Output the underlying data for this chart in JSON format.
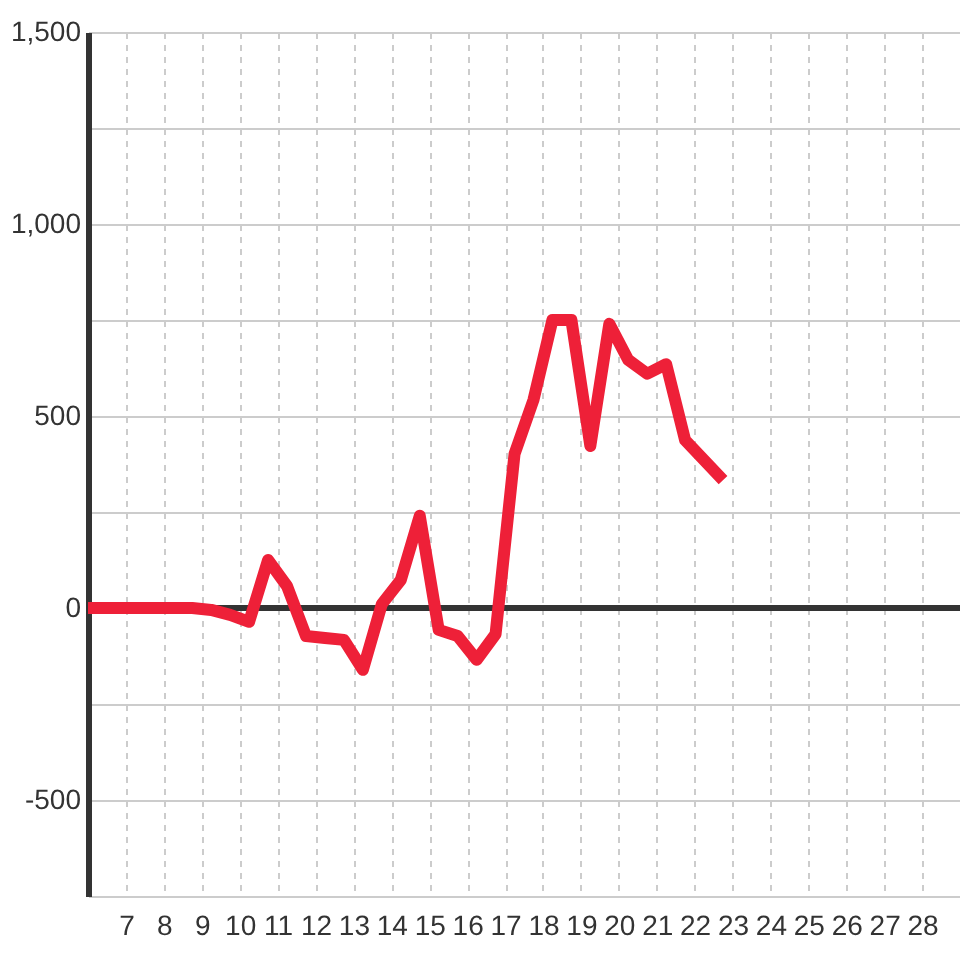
{
  "chart_data": {
    "type": "line",
    "x": [
      6,
      6.75,
      7.25,
      7.75,
      8.25,
      8.75,
      9.25,
      9.75,
      10.25,
      10.75,
      11.25,
      11.75,
      12.25,
      12.75,
      13.25,
      13.75,
      14.25,
      14.75,
      15.25,
      15.75,
      16.25,
      16.75,
      17.25,
      17.75,
      18.25,
      18.75,
      19.25,
      19.75,
      20.25,
      20.75,
      21.25,
      21.75,
      22.25,
      22.75
    ],
    "series": [
      {
        "color": "#ee2038",
        "values": [
          0,
          0,
          0,
          0,
          0,
          0,
          -5,
          -18,
          -36,
          125,
          57,
          -73,
          -78,
          -83,
          -161,
          10,
          73,
          240,
          -57,
          -73,
          -135,
          -68,
          401,
          542,
          750,
          750,
          422,
          740,
          646,
          610,
          635,
          437,
          385,
          333
        ]
      }
    ],
    "xlim": [
      6,
      29
    ],
    "xticks": [
      7,
      8,
      9,
      10,
      11,
      12,
      13,
      14,
      15,
      16,
      17,
      18,
      19,
      20,
      21,
      22,
      23,
      24,
      25,
      26,
      27,
      28
    ],
    "ylim": [
      -750,
      1500
    ],
    "yticks": [
      {
        "value": -750,
        "label": null
      },
      -500,
      {
        "value": -250,
        "label": null
      },
      0,
      {
        "value": 250,
        "label": null
      },
      500,
      {
        "value": 750,
        "label": null
      },
      {
        "value": 1000,
        "label": "1,000"
      },
      {
        "value": 1250,
        "label": null
      },
      {
        "value": 1500,
        "label": "1,500"
      }
    ],
    "grid": true,
    "line_style": "solid",
    "ref_lines": [
      {
        "axis": "y",
        "value": 0,
        "color": "#333333"
      }
    ]
  }
}
